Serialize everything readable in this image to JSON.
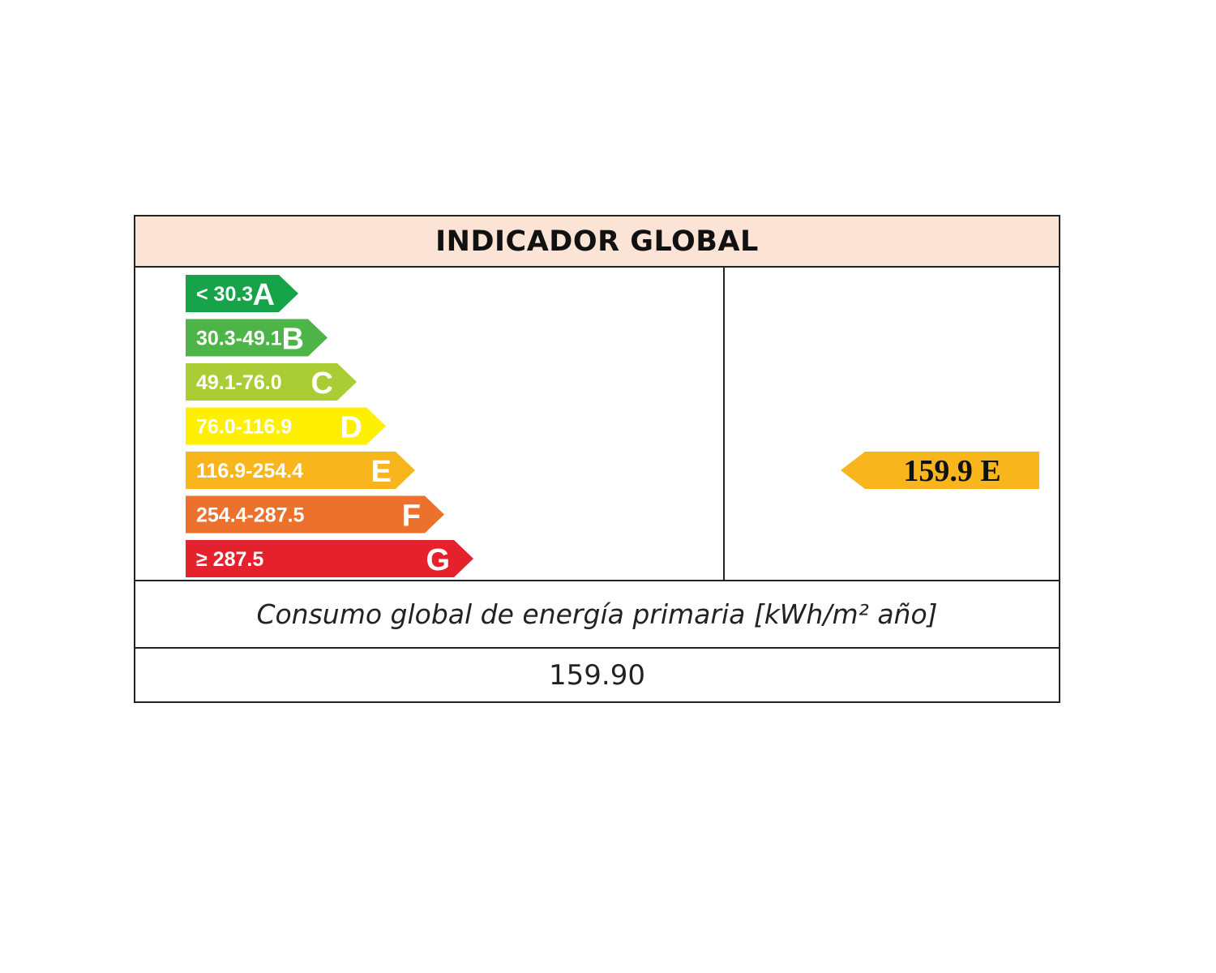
{
  "header": {
    "title": "INDICADOR GLOBAL"
  },
  "caption": "Consumo global de energía primaria [kWh/m² año]",
  "value_text": "159.90",
  "colors": {
    "header_bg": "#fbe4d5",
    "A": "#17a34a",
    "B": "#4db447",
    "C": "#aacd35",
    "D": "#ffef00",
    "E": "#f9b51c",
    "F": "#ec712d",
    "G": "#e5212c"
  },
  "chart_data": {
    "type": "bar",
    "title": "INDICADOR GLOBAL",
    "categories": [
      "A",
      "B",
      "C",
      "D",
      "E",
      "F",
      "G"
    ],
    "ranges": [
      "< 30.3",
      "30.3-49.1",
      "49.1-76.0",
      "76.0-116.9",
      "116.9-254.4",
      "254.4-287.5",
      "≥ 287.5"
    ],
    "current": {
      "value": 159.9,
      "value_label": "159.9",
      "class": "E"
    }
  }
}
